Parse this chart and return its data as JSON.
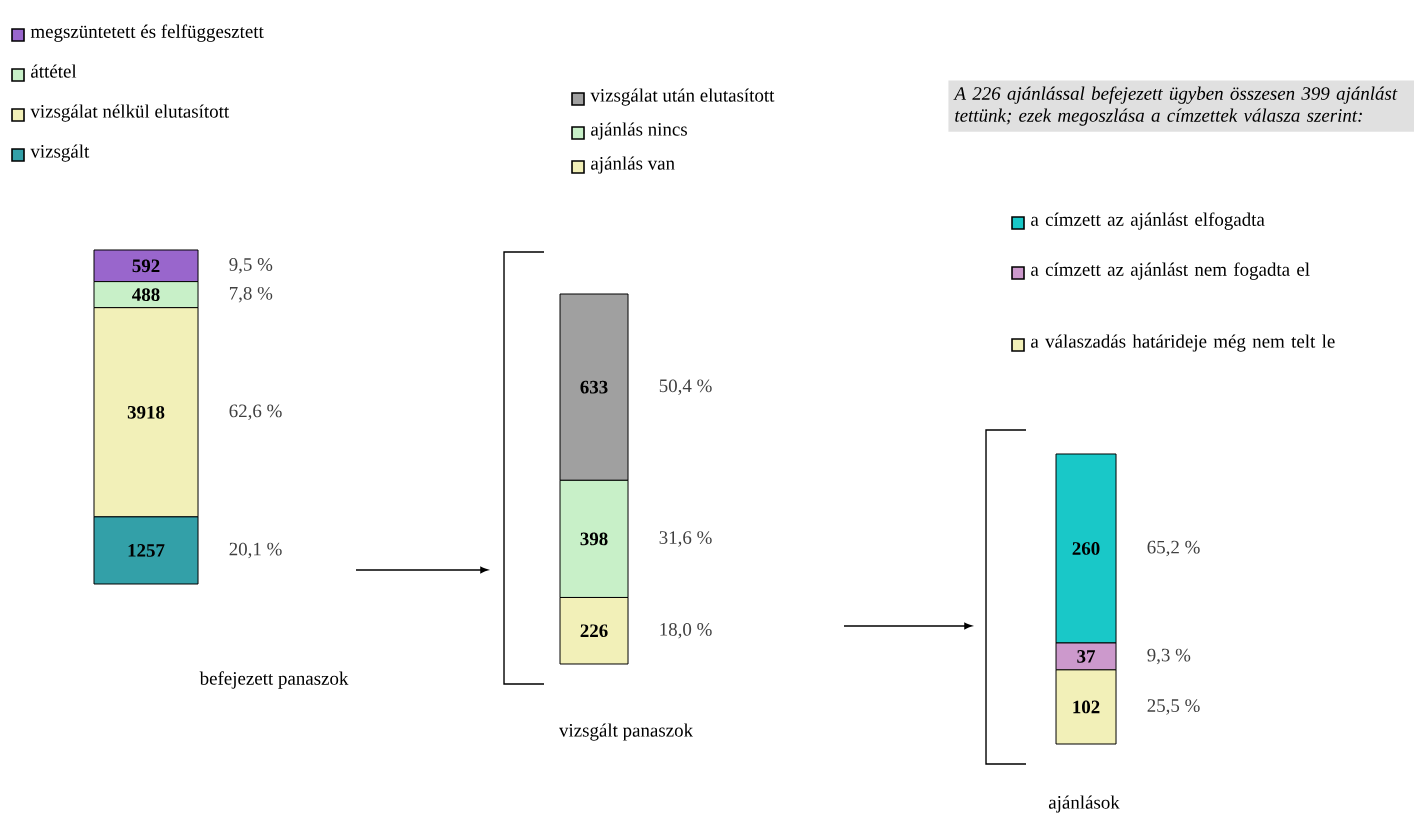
{
  "chart_data": [
    {
      "type": "bar",
      "stacked": true,
      "categories": [
        null
      ],
      "xlabel": "befejezett panaszok",
      "data_labels": true,
      "legend": "top",
      "series": [
        {
          "name": "vizsgált",
          "color": "#33a0a8",
          "values": [
            1257
          ]
        },
        {
          "name": "vizsgálat nélkül elutasított",
          "color": "#f2f0b8",
          "values": [
            3918
          ]
        },
        {
          "name": "áttétel",
          "color": "#c8f0c8",
          "values": [
            488
          ]
        },
        {
          "name": "megszüntetett és felfüggesztett",
          "color": "#9966cc",
          "values": [
            592
          ]
        }
      ],
      "annotations": [
        "20,1 %",
        "62,6 %",
        "7,8 %",
        "9,5 %"
      ]
    },
    {
      "type": "bar",
      "stacked": true,
      "categories": [
        null
      ],
      "xlabel": "vizsgált panaszok",
      "data_labels": true,
      "legend": "top",
      "series": [
        {
          "name": "ajánlás van",
          "color": "#f2f0b8",
          "values": [
            226
          ]
        },
        {
          "name": "ajánlás nincs",
          "color": "#c8f0c8",
          "values": [
            398
          ]
        },
        {
          "name": "vizsgálat után elutasított",
          "color": "#a0a0a0",
          "values": [
            633
          ]
        }
      ],
      "annotations": [
        "18,0 %",
        "31,6 %",
        "50,4 %"
      ]
    },
    {
      "type": "bar",
      "stacked": true,
      "categories": [
        null
      ],
      "title": "A 226 ajánlással befejezett ügyben összesen 399 ajánlást tettünk; ezek megoszlása a címzettek válasza szerint:",
      "xlabel": "ajánlások",
      "data_labels": true,
      "legend": "top",
      "series": [
        {
          "name": "a válaszadás határideje még nem telt le",
          "color": "#f2f0b8",
          "values": [
            102
          ]
        },
        {
          "name": "a címzett az ajánlást nem fogadta el",
          "color": "#cc99cc",
          "values": [
            37
          ]
        },
        {
          "name": "a címzett az ajánlást elfogadta",
          "color": "#19c8c8",
          "values": [
            260
          ]
        }
      ],
      "annotations": [
        "25,5 %",
        "9,3 %",
        "65,2 %"
      ]
    }
  ]
}
